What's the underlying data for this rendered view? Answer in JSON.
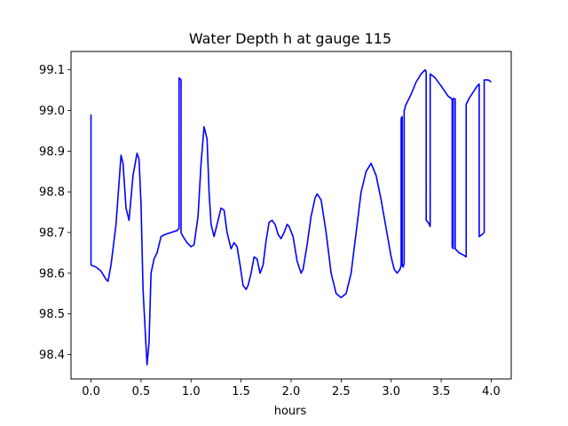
{
  "chart_data": {
    "type": "line",
    "title": "Water Depth h at gauge 115",
    "xlabel": "hours",
    "ylabel": "",
    "xlim": [
      -0.2,
      4.2
    ],
    "ylim": [
      98.34,
      99.145
    ],
    "xticks": [
      0.0,
      0.5,
      1.0,
      1.5,
      2.0,
      2.5,
      3.0,
      3.5,
      4.0
    ],
    "xtick_labels": [
      "0.0",
      "0.5",
      "1.0",
      "1.5",
      "2.0",
      "2.5",
      "3.0",
      "3.5",
      "4.0"
    ],
    "yticks": [
      98.4,
      98.5,
      98.6,
      98.7,
      98.8,
      98.9,
      99.0,
      99.1
    ],
    "ytick_labels": [
      "98.4",
      "98.5",
      "98.6",
      "98.7",
      "98.8",
      "98.9",
      "99.0",
      "99.1"
    ],
    "grid": false,
    "color": "#0000ff",
    "series": [
      {
        "x": [
          0.0,
          0.0,
          0.05,
          0.1,
          0.15,
          0.17,
          0.2,
          0.25,
          0.3,
          0.32,
          0.35,
          0.38,
          0.42,
          0.46,
          0.48,
          0.5,
          0.52,
          0.55,
          0.56,
          0.58,
          0.6,
          0.63,
          0.66,
          0.7,
          0.74,
          0.8,
          0.86,
          0.88,
          0.88,
          0.9,
          0.9,
          0.92,
          0.96,
          1.0,
          1.03,
          1.07,
          1.1,
          1.13,
          1.16,
          1.18,
          1.2,
          1.23,
          1.26,
          1.3,
          1.33,
          1.36,
          1.4,
          1.43,
          1.46,
          1.49,
          1.52,
          1.55,
          1.57,
          1.6,
          1.63,
          1.66,
          1.69,
          1.72,
          1.75,
          1.78,
          1.81,
          1.84,
          1.87,
          1.9,
          1.93,
          1.96,
          1.98,
          2.02,
          2.06,
          2.1,
          2.12,
          2.16,
          2.2,
          2.24,
          2.26,
          2.3,
          2.35,
          2.4,
          2.45,
          2.5,
          2.55,
          2.6,
          2.65,
          2.7,
          2.75,
          2.8,
          2.85,
          2.9,
          2.95,
          3.0,
          3.03,
          3.06,
          3.09,
          3.1,
          3.1,
          3.11,
          3.11,
          3.12,
          3.13,
          3.13,
          3.14,
          3.14,
          3.2,
          3.25,
          3.3,
          3.34,
          3.35,
          3.35,
          3.37,
          3.38,
          3.39,
          3.39,
          3.44,
          3.5,
          3.57,
          3.6,
          3.61,
          3.61,
          3.62,
          3.62,
          3.64,
          3.64,
          3.68,
          3.72,
          3.75,
          3.75,
          3.78,
          3.82,
          3.86,
          3.88,
          3.88,
          3.91,
          3.93,
          3.93,
          3.97,
          4.0
        ],
        "y": [
          98.99,
          98.62,
          98.615,
          98.605,
          98.585,
          98.58,
          98.62,
          98.72,
          98.89,
          98.87,
          98.76,
          98.73,
          98.84,
          98.895,
          98.88,
          98.77,
          98.56,
          98.42,
          98.375,
          98.43,
          98.6,
          98.635,
          98.65,
          98.69,
          98.695,
          98.7,
          98.705,
          98.71,
          99.08,
          99.075,
          98.7,
          98.69,
          98.675,
          98.665,
          98.67,
          98.74,
          98.87,
          98.96,
          98.93,
          98.8,
          98.72,
          98.69,
          98.72,
          98.76,
          98.755,
          98.7,
          98.66,
          98.675,
          98.665,
          98.62,
          98.57,
          98.56,
          98.57,
          98.6,
          98.64,
          98.635,
          98.6,
          98.62,
          98.68,
          98.725,
          98.73,
          98.72,
          98.695,
          98.685,
          98.7,
          98.72,
          98.715,
          98.69,
          98.63,
          98.6,
          98.61,
          98.67,
          98.74,
          98.785,
          98.795,
          98.78,
          98.7,
          98.6,
          98.55,
          98.54,
          98.55,
          98.6,
          98.7,
          98.8,
          98.85,
          98.87,
          98.84,
          98.78,
          98.71,
          98.64,
          98.61,
          98.6,
          98.61,
          98.62,
          98.98,
          98.985,
          98.62,
          98.615,
          98.625,
          99.0,
          99.005,
          99.01,
          99.04,
          99.07,
          99.09,
          99.1,
          99.095,
          98.73,
          98.725,
          98.72,
          98.715,
          99.09,
          99.08,
          99.06,
          99.035,
          99.03,
          99.025,
          98.665,
          98.66,
          99.03,
          99.028,
          98.66,
          98.65,
          98.645,
          98.64,
          99.015,
          99.03,
          99.045,
          99.06,
          99.065,
          98.69,
          98.695,
          98.7,
          99.075,
          99.075,
          99.07
        ]
      }
    ]
  }
}
